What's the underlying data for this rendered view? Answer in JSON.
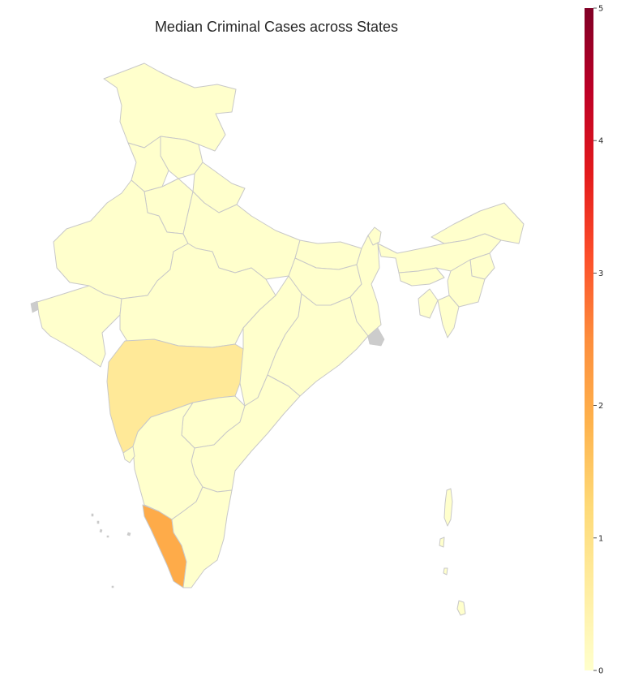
{
  "chart_data": {
    "type": "choropleth",
    "title": "Median Criminal Cases across States",
    "colormap": "YlOrRd",
    "colorbar": {
      "min": 0,
      "max": 5,
      "ticks": [
        "0",
        "1",
        "2",
        "3",
        "4",
        "5"
      ],
      "stops": [
        "#ffffcc",
        "#ffeda0",
        "#fed976",
        "#feb24c",
        "#fd8d3c",
        "#fc4e2a",
        "#e31a1c",
        "#bd0026",
        "#800026"
      ]
    },
    "regions": [
      {
        "name": "Jammu & Kashmir",
        "value": 0
      },
      {
        "name": "Himachal Pradesh",
        "value": 0
      },
      {
        "name": "Punjab",
        "value": 0
      },
      {
        "name": "Uttarakhand",
        "value": 0
      },
      {
        "name": "Haryana",
        "value": 0
      },
      {
        "name": "Rajasthan",
        "value": 0
      },
      {
        "name": "Uttar Pradesh",
        "value": 0
      },
      {
        "name": "Bihar",
        "value": 0
      },
      {
        "name": "Gujarat",
        "value": 0
      },
      {
        "name": "Madhya Pradesh",
        "value": 0
      },
      {
        "name": "Jharkhand",
        "value": 0
      },
      {
        "name": "West Bengal",
        "value": 0
      },
      {
        "name": "Chhattisgarh",
        "value": 0
      },
      {
        "name": "Odisha",
        "value": 0
      },
      {
        "name": "Maharashtra",
        "value": 0.75
      },
      {
        "name": "Telangana",
        "value": 0
      },
      {
        "name": "Andhra Pradesh",
        "value": 0
      },
      {
        "name": "Karnataka",
        "value": 0
      },
      {
        "name": "Goa",
        "value": 0
      },
      {
        "name": "Kerala",
        "value": 2
      },
      {
        "name": "Tamil Nadu",
        "value": 0
      },
      {
        "name": "Sikkim",
        "value": 0
      },
      {
        "name": "Arunachal Pradesh",
        "value": 0
      },
      {
        "name": "Assam",
        "value": 0
      },
      {
        "name": "Meghalaya",
        "value": 0
      },
      {
        "name": "Nagaland",
        "value": 0
      },
      {
        "name": "Manipur",
        "value": 0
      },
      {
        "name": "Tripura",
        "value": 0
      },
      {
        "name": "Mizoram",
        "value": 0
      },
      {
        "name": "Andaman & Nicobar",
        "value": 0
      }
    ]
  }
}
